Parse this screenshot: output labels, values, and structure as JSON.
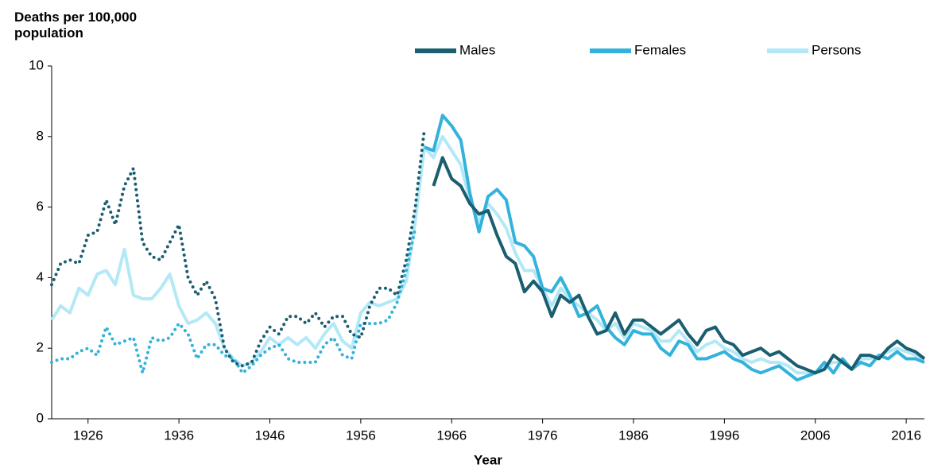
{
  "chart_data": {
    "type": "line",
    "y_label": "Deaths per 100,000 population",
    "x_label": "Year",
    "x": [
      1922,
      1923,
      1924,
      1925,
      1926,
      1927,
      1928,
      1929,
      1930,
      1931,
      1932,
      1933,
      1934,
      1935,
      1936,
      1937,
      1938,
      1939,
      1940,
      1941,
      1942,
      1943,
      1944,
      1945,
      1946,
      1947,
      1948,
      1949,
      1950,
      1951,
      1952,
      1953,
      1954,
      1955,
      1956,
      1957,
      1958,
      1959,
      1960,
      1961,
      1962,
      1963,
      1964,
      1965,
      1966,
      1967,
      1968,
      1969,
      1970,
      1971,
      1972,
      1973,
      1974,
      1975,
      1976,
      1977,
      1978,
      1979,
      1980,
      1981,
      1982,
      1983,
      1984,
      1985,
      1986,
      1987,
      1988,
      1989,
      1990,
      1991,
      1992,
      1993,
      1994,
      1995,
      1996,
      1997,
      1998,
      1999,
      2000,
      2001,
      2002,
      2003,
      2004,
      2005,
      2006,
      2007,
      2008,
      2009,
      2010,
      2011,
      2012,
      2013,
      2014,
      2015,
      2016,
      2017,
      2018
    ],
    "series": [
      {
        "name": "Persons",
        "color": "#b3e8f7",
        "width": 4,
        "dotted_until": null,
        "values": [
          2.8,
          3.2,
          3.0,
          3.7,
          3.5,
          4.1,
          4.2,
          3.8,
          4.8,
          3.5,
          3.4,
          3.4,
          3.7,
          4.1,
          3.2,
          2.7,
          2.8,
          3.0,
          2.7,
          2.0,
          1.7,
          1.5,
          1.6,
          1.9,
          2.3,
          2.1,
          2.3,
          2.1,
          2.3,
          2.0,
          2.4,
          2.7,
          2.2,
          2.0,
          3.0,
          3.3,
          3.2,
          3.3,
          3.4,
          3.9,
          5.6,
          7.7,
          7.4,
          8.0,
          7.6,
          7.2,
          6.2,
          5.6,
          6.1,
          5.8,
          5.4,
          4.7,
          4.2,
          4.2,
          3.7,
          3.2,
          3.7,
          3.4,
          3.2,
          3.0,
          2.8,
          2.5,
          2.7,
          2.3,
          2.7,
          2.6,
          2.5,
          2.2,
          2.2,
          2.5,
          2.2,
          1.9,
          2.1,
          2.2,
          2.0,
          1.9,
          1.7,
          1.6,
          1.7,
          1.6,
          1.6,
          1.5,
          1.3,
          1.3,
          1.3,
          1.5,
          1.6,
          1.6,
          1.4,
          1.7,
          1.7,
          1.8,
          1.9,
          2.0,
          1.9,
          1.8,
          1.7
        ]
      },
      {
        "name": "Females",
        "color": "#33b2dc",
        "width": 4,
        "dotted_until": 1962,
        "values": [
          1.6,
          1.7,
          1.7,
          1.9,
          2.0,
          1.8,
          2.6,
          2.1,
          2.2,
          2.3,
          1.3,
          2.3,
          2.2,
          2.3,
          2.7,
          2.4,
          1.7,
          2.1,
          2.1,
          1.8,
          1.7,
          1.3,
          1.5,
          1.8,
          2.0,
          2.1,
          1.7,
          1.6,
          1.6,
          1.6,
          2.1,
          2.3,
          1.8,
          1.7,
          2.7,
          2.7,
          2.7,
          2.8,
          3.3,
          4.2,
          5.4,
          7.7,
          7.6,
          8.6,
          8.3,
          7.9,
          6.4,
          5.3,
          6.3,
          6.5,
          6.2,
          5.0,
          4.9,
          4.6,
          3.7,
          3.6,
          4.0,
          3.5,
          2.9,
          3.0,
          3.2,
          2.6,
          2.3,
          2.1,
          2.5,
          2.4,
          2.4,
          2.0,
          1.8,
          2.2,
          2.1,
          1.7,
          1.7,
          1.8,
          1.9,
          1.7,
          1.6,
          1.4,
          1.3,
          1.4,
          1.5,
          1.3,
          1.1,
          1.2,
          1.3,
          1.6,
          1.3,
          1.7,
          1.4,
          1.6,
          1.5,
          1.8,
          1.7,
          1.9,
          1.7,
          1.7,
          1.6
        ]
      },
      {
        "name": "Males",
        "color": "#1a5e70",
        "width": 4,
        "dotted_until": 1963,
        "values": [
          3.8,
          4.4,
          4.5,
          4.4,
          5.2,
          5.3,
          6.2,
          5.5,
          6.6,
          7.1,
          5.0,
          4.6,
          4.5,
          5.0,
          5.5,
          4.0,
          3.5,
          3.9,
          3.4,
          2.0,
          1.6,
          1.5,
          1.6,
          2.2,
          2.6,
          2.4,
          2.9,
          2.9,
          2.7,
          3.0,
          2.6,
          2.9,
          2.9,
          2.4,
          2.3,
          3.2,
          3.7,
          3.7,
          3.5,
          4.5,
          6.0,
          8.2,
          6.6,
          7.4,
          6.8,
          6.6,
          6.1,
          5.8,
          5.9,
          5.2,
          4.6,
          4.4,
          3.6,
          3.9,
          3.6,
          2.9,
          3.5,
          3.3,
          3.5,
          2.9,
          2.4,
          2.5,
          3.0,
          2.4,
          2.8,
          2.8,
          2.6,
          2.4,
          2.6,
          2.8,
          2.4,
          2.1,
          2.5,
          2.6,
          2.2,
          2.1,
          1.8,
          1.9,
          2.0,
          1.8,
          1.9,
          1.7,
          1.5,
          1.4,
          1.3,
          1.4,
          1.8,
          1.6,
          1.4,
          1.8,
          1.8,
          1.7,
          2.0,
          2.2,
          2.0,
          1.9,
          1.7
        ]
      }
    ],
    "legend_order": [
      "Males",
      "Females",
      "Persons"
    ],
    "xlim": [
      1922,
      2018
    ],
    "xticks": [
      1926,
      1936,
      1946,
      1956,
      1966,
      1976,
      1986,
      1996,
      2006,
      2016
    ],
    "ylim": [
      0,
      10
    ],
    "yticks": [
      0,
      2,
      4,
      6,
      8,
      10
    ],
    "grid": false
  }
}
